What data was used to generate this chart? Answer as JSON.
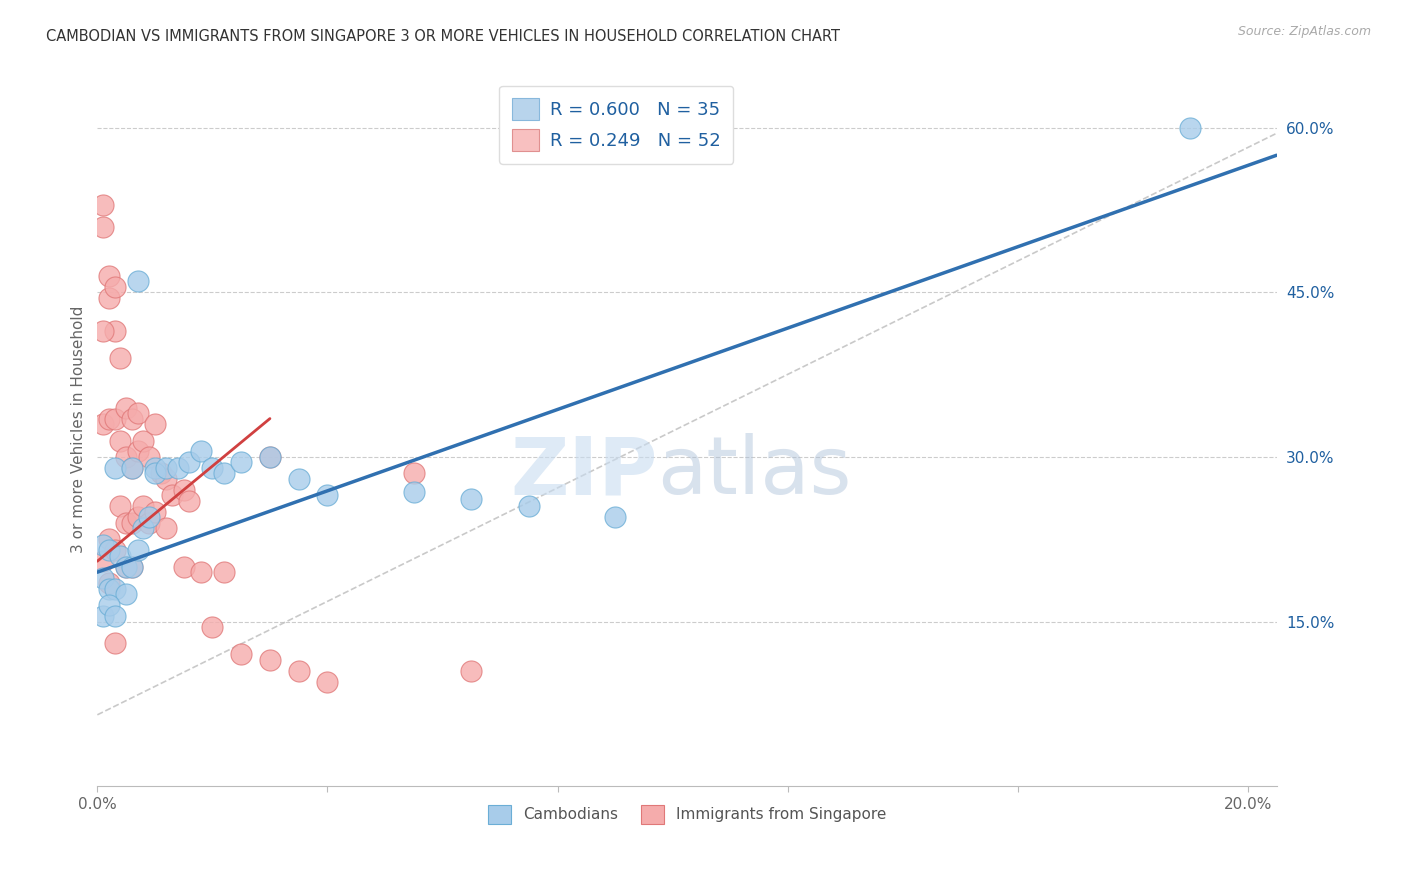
{
  "title": "CAMBODIAN VS IMMIGRANTS FROM SINGAPORE 3 OR MORE VEHICLES IN HOUSEHOLD CORRELATION CHART",
  "source": "Source: ZipAtlas.com",
  "ylabel": "3 or more Vehicles in Household",
  "xlim": [
    0.0,
    0.205
  ],
  "ylim": [
    0.0,
    0.65
  ],
  "xtick_positions": [
    0.0,
    0.04,
    0.08,
    0.12,
    0.16,
    0.2
  ],
  "xtick_labels": [
    "0.0%",
    "",
    "",
    "",
    "",
    "20.0%"
  ],
  "yticks_right": [
    0.15,
    0.3,
    0.45,
    0.6
  ],
  "ytick_labels_right": [
    "15.0%",
    "30.0%",
    "45.0%",
    "60.0%"
  ],
  "legend_blue_label": "R = 0.600   N = 35",
  "legend_pink_label": "R = 0.249   N = 52",
  "blue_fill": "#A8CCEA",
  "blue_edge": "#6BAED6",
  "pink_fill": "#F5ACAC",
  "pink_edge": "#E07878",
  "blue_line_color": "#3070B0",
  "pink_line_color": "#D04040",
  "gray_line_color": "#C0C0C0",
  "right_axis_color": "#2060A0",
  "legend_bottom": [
    "Cambodians",
    "Immigrants from Singapore"
  ],
  "blue_line_x0": 0.0,
  "blue_line_y0": 0.195,
  "blue_line_x1": 0.205,
  "blue_line_y1": 0.575,
  "pink_line_x0": 0.0,
  "pink_line_y0": 0.205,
  "pink_line_x1": 0.03,
  "pink_line_y1": 0.335,
  "gray_line_x0": 0.0,
  "gray_line_y0": 0.065,
  "gray_line_x1": 0.205,
  "gray_line_y1": 0.595,
  "camb_x": [
    0.001,
    0.001,
    0.002,
    0.002,
    0.003,
    0.003,
    0.004,
    0.005,
    0.005,
    0.006,
    0.006,
    0.007,
    0.008,
    0.009,
    0.01,
    0.01,
    0.012,
    0.014,
    0.016,
    0.018,
    0.02,
    0.022,
    0.025,
    0.03,
    0.035,
    0.04,
    0.055,
    0.065,
    0.075,
    0.09,
    0.001,
    0.002,
    0.003,
    0.19,
    0.007
  ],
  "camb_y": [
    0.22,
    0.19,
    0.215,
    0.18,
    0.29,
    0.18,
    0.21,
    0.175,
    0.2,
    0.2,
    0.29,
    0.215,
    0.235,
    0.245,
    0.29,
    0.285,
    0.29,
    0.29,
    0.295,
    0.305,
    0.29,
    0.285,
    0.295,
    0.3,
    0.28,
    0.265,
    0.268,
    0.262,
    0.255,
    0.245,
    0.155,
    0.165,
    0.155,
    0.6,
    0.46
  ],
  "sing_x": [
    0.001,
    0.001,
    0.001,
    0.001,
    0.002,
    0.002,
    0.002,
    0.002,
    0.002,
    0.003,
    0.003,
    0.003,
    0.003,
    0.003,
    0.004,
    0.004,
    0.004,
    0.005,
    0.005,
    0.005,
    0.005,
    0.006,
    0.006,
    0.006,
    0.006,
    0.007,
    0.007,
    0.007,
    0.008,
    0.008,
    0.009,
    0.009,
    0.01,
    0.01,
    0.011,
    0.012,
    0.012,
    0.013,
    0.015,
    0.015,
    0.016,
    0.018,
    0.02,
    0.022,
    0.025,
    0.03,
    0.03,
    0.035,
    0.04,
    0.055,
    0.065,
    0.001
  ],
  "sing_y": [
    0.53,
    0.51,
    0.33,
    0.205,
    0.465,
    0.445,
    0.335,
    0.225,
    0.185,
    0.455,
    0.415,
    0.335,
    0.215,
    0.13,
    0.39,
    0.315,
    0.255,
    0.345,
    0.3,
    0.24,
    0.2,
    0.335,
    0.29,
    0.24,
    0.2,
    0.34,
    0.305,
    0.245,
    0.315,
    0.255,
    0.3,
    0.24,
    0.33,
    0.25,
    0.285,
    0.28,
    0.235,
    0.265,
    0.27,
    0.2,
    0.26,
    0.195,
    0.145,
    0.195,
    0.12,
    0.3,
    0.115,
    0.105,
    0.095,
    0.285,
    0.105,
    0.415
  ]
}
